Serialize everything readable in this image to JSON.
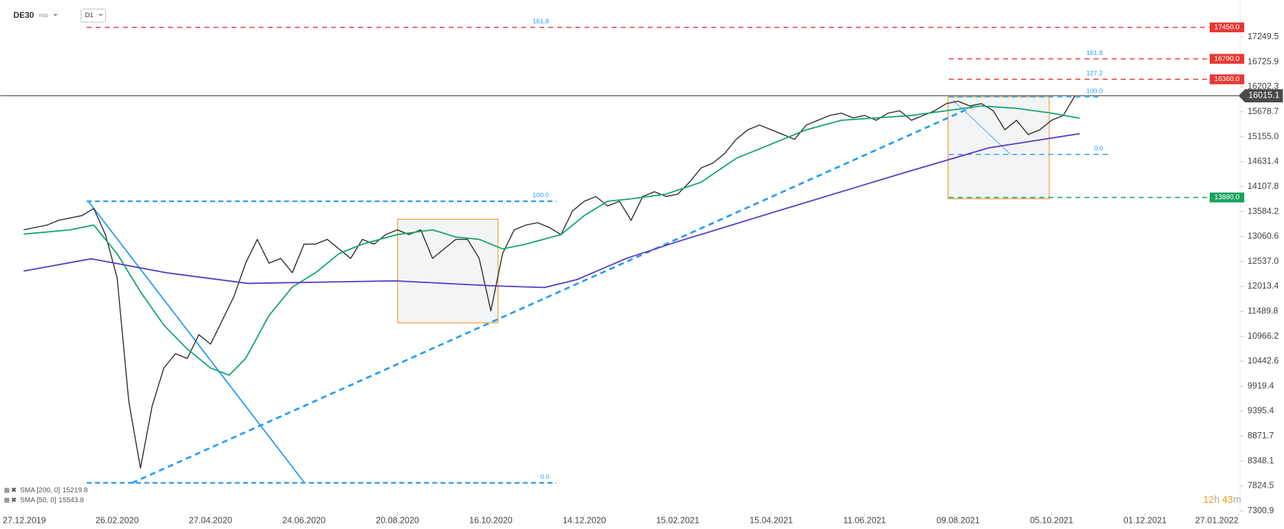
{
  "chart_data": {
    "type": "line",
    "symbol": "DE30",
    "market": "IND",
    "interval": "D1",
    "xlim": [
      -10,
      520
    ],
    "ylim": [
      7249,
      18025
    ],
    "xticks": [
      {
        "value": 0,
        "label": "27.12.2019"
      },
      {
        "value": 40,
        "label": "26.02.2020"
      },
      {
        "value": 80,
        "label": "27.04.2020"
      },
      {
        "value": 120,
        "label": "24.06.2020"
      },
      {
        "value": 160,
        "label": "20.08.2020"
      },
      {
        "value": 200,
        "label": "16.10.2020"
      },
      {
        "value": 240,
        "label": "14.12.2020"
      },
      {
        "value": 280,
        "label": "15.02.2021"
      },
      {
        "value": 320,
        "label": "15.04.2021"
      },
      {
        "value": 360,
        "label": "11.06.2021"
      },
      {
        "value": 400,
        "label": "09.08.2021"
      },
      {
        "value": 440,
        "label": "05.10.2021"
      },
      {
        "value": 480,
        "label": "01.12.2021"
      },
      {
        "value": 520,
        "label": "27.01.2022"
      }
    ],
    "yticks": [
      17249.5,
      16725.9,
      16202.3,
      15678.7,
      {
        "value": 15155,
        "label": "15155.0"
      },
      14631.4,
      14107.8,
      13584.2,
      13060.6,
      {
        "value": 12537,
        "label": "12537.0"
      },
      12013.4,
      11489.8,
      10966.2,
      10442.6,
      9919.4,
      9395.4,
      8871.7,
      8348.1,
      7824.5,
      7300.9
    ],
    "last_price": 16015.1,
    "series": [
      {
        "name": "DE30",
        "color": "#2b2b2b",
        "x": [
          0,
          5,
          10,
          15,
          20,
          25,
          30,
          35,
          40,
          45,
          50,
          55,
          60,
          65,
          70,
          75,
          80,
          85,
          90,
          95,
          100,
          105,
          110,
          115,
          120,
          125,
          130,
          135,
          140,
          145,
          150,
          155,
          160,
          165,
          170,
          175,
          180,
          185,
          190,
          195,
          200,
          205,
          210,
          215,
          220,
          225,
          230,
          235,
          240,
          245,
          250,
          255,
          260,
          265,
          270,
          275,
          280,
          285,
          290,
          295,
          300,
          305,
          310,
          315,
          320,
          325,
          330,
          335,
          340,
          345,
          350,
          355,
          360,
          365,
          370,
          375,
          380,
          385,
          390,
          395,
          400,
          405,
          410,
          415,
          420,
          425,
          430,
          435,
          440,
          445,
          450
        ],
        "values": [
          13200,
          13250,
          13300,
          13400,
          13450,
          13500,
          13650,
          13100,
          12200,
          9600,
          8200,
          9500,
          10300,
          10600,
          10500,
          11000,
          10800,
          11300,
          11800,
          12500,
          13000,
          12500,
          12600,
          12300,
          12900,
          12900,
          13000,
          12800,
          12600,
          13000,
          12900,
          13100,
          13200,
          13100,
          13200,
          12600,
          12800,
          13000,
          13000,
          12600,
          11500,
          12700,
          13200,
          13300,
          13350,
          13250,
          13100,
          13600,
          13800,
          13900,
          13700,
          13800,
          13400,
          13900,
          14000,
          13900,
          13950,
          14200,
          14500,
          14600,
          14800,
          15100,
          15300,
          15400,
          15300,
          15200,
          15100,
          15400,
          15500,
          15600,
          15650,
          15550,
          15600,
          15500,
          15650,
          15700,
          15500,
          15600,
          15700,
          15850,
          15900,
          15800,
          15850,
          15700,
          15300,
          15500,
          15200,
          15300,
          15500,
          15600,
          16015.1
        ]
      },
      {
        "name": "SMA [50, 0]",
        "color": "#17a86b",
        "x": [
          0,
          20,
          30,
          40,
          50,
          60,
          70,
          80,
          88,
          95,
          105,
          115,
          125,
          135,
          145,
          160,
          175,
          185,
          195,
          205,
          215,
          230,
          240,
          250,
          260,
          275,
          290,
          305,
          320,
          335,
          350,
          365,
          380,
          395,
          410,
          425,
          440,
          452
        ],
        "values": [
          13112,
          13200,
          13300,
          12700,
          11900,
          11200,
          10700,
          10300,
          10150,
          10500,
          11400,
          12000,
          12300,
          12700,
          12900,
          13100,
          13200,
          13050,
          13000,
          12800,
          12900,
          13100,
          13500,
          13800,
          13850,
          13950,
          14200,
          14700,
          15000,
          15300,
          15500,
          15550,
          15600,
          15700,
          15800,
          15750,
          15650,
          15543.8
        ]
      },
      {
        "name": "SMA [200, 0]",
        "color": "#5b3cc4",
        "x": [
          0,
          29,
          61,
          96,
          159,
          201,
          223,
          237,
          258,
          279,
          325,
          377,
          413,
          452
        ],
        "values": [
          12336,
          12594,
          12300,
          12077,
          12130,
          12025,
          11990,
          12160,
          12600,
          12940,
          13630,
          14400,
          14920,
          15219.8
        ]
      }
    ],
    "levels": [
      {
        "label": "161.8",
        "value": 17450,
        "badge": "17450.0",
        "start": 27,
        "end": 508,
        "color": "#e53935"
      },
      {
        "label": "100.0",
        "value": 13800,
        "start": 27,
        "end": 228,
        "color": "#2a9df4"
      },
      {
        "label": "0.0",
        "value": 7890,
        "start": 27,
        "end": 228,
        "color": "#2a9df4"
      },
      {
        "label": "161.8",
        "value": 16790,
        "badge": "16790.0",
        "start": 396,
        "end": 508,
        "color": "#e53935"
      },
      {
        "label": "127.2",
        "value": 16360,
        "badge": "16360.0",
        "start": 396,
        "end": 508,
        "color": "#e53935"
      },
      {
        "label": "100.0",
        "value": 15990,
        "start": 396,
        "end": 460,
        "color": "#2a9df4"
      },
      {
        "label": "0.0",
        "value": 14784,
        "start": 396,
        "end": 464,
        "color": "#2a9df4"
      },
      {
        "value": 13880,
        "badge": "13880.0",
        "start": 396,
        "end": 508,
        "color": "#1aa260"
      }
    ],
    "timer": {
      "hours": "12",
      "hours_unit": "h",
      "minutes": "43",
      "minutes_unit": "m"
    }
  }
}
